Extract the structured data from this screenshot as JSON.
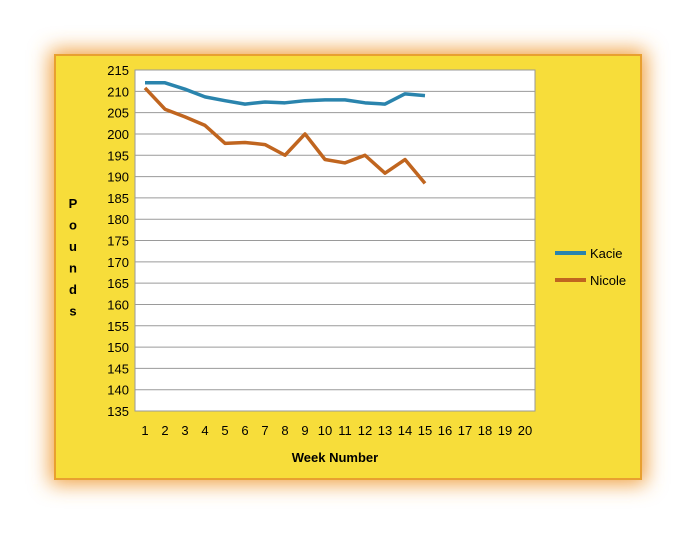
{
  "chart_data": {
    "type": "line",
    "categories": [
      "1",
      "2",
      "3",
      "4",
      "5",
      "6",
      "7",
      "8",
      "9",
      "10",
      "11",
      "12",
      "13",
      "14",
      "15",
      "16",
      "17",
      "18",
      "19",
      "20"
    ],
    "series": [
      {
        "name": "Kacie",
        "color": "#2a84ad",
        "values": [
          212,
          212,
          210.5,
          208.7,
          207.8,
          207,
          207.5,
          207.3,
          207.8,
          208,
          208,
          207.3,
          207,
          209.4,
          209,
          null,
          null,
          null,
          null,
          null
        ]
      },
      {
        "name": "Nicole",
        "color": "#c0651f",
        "values": [
          210.8,
          205.8,
          204,
          202,
          197.8,
          198,
          197.5,
          195,
          200,
          194,
          193.2,
          195,
          190.8,
          194,
          188.4,
          null,
          null,
          null,
          null,
          null
        ]
      }
    ],
    "x_label": "Week Number",
    "y_label": "Pounds",
    "ylim": [
      135,
      215
    ],
    "yticks": [
      135,
      140,
      145,
      150,
      155,
      160,
      165,
      170,
      175,
      180,
      185,
      190,
      195,
      200,
      205,
      210,
      215
    ],
    "grid": true,
    "legend": "right"
  }
}
